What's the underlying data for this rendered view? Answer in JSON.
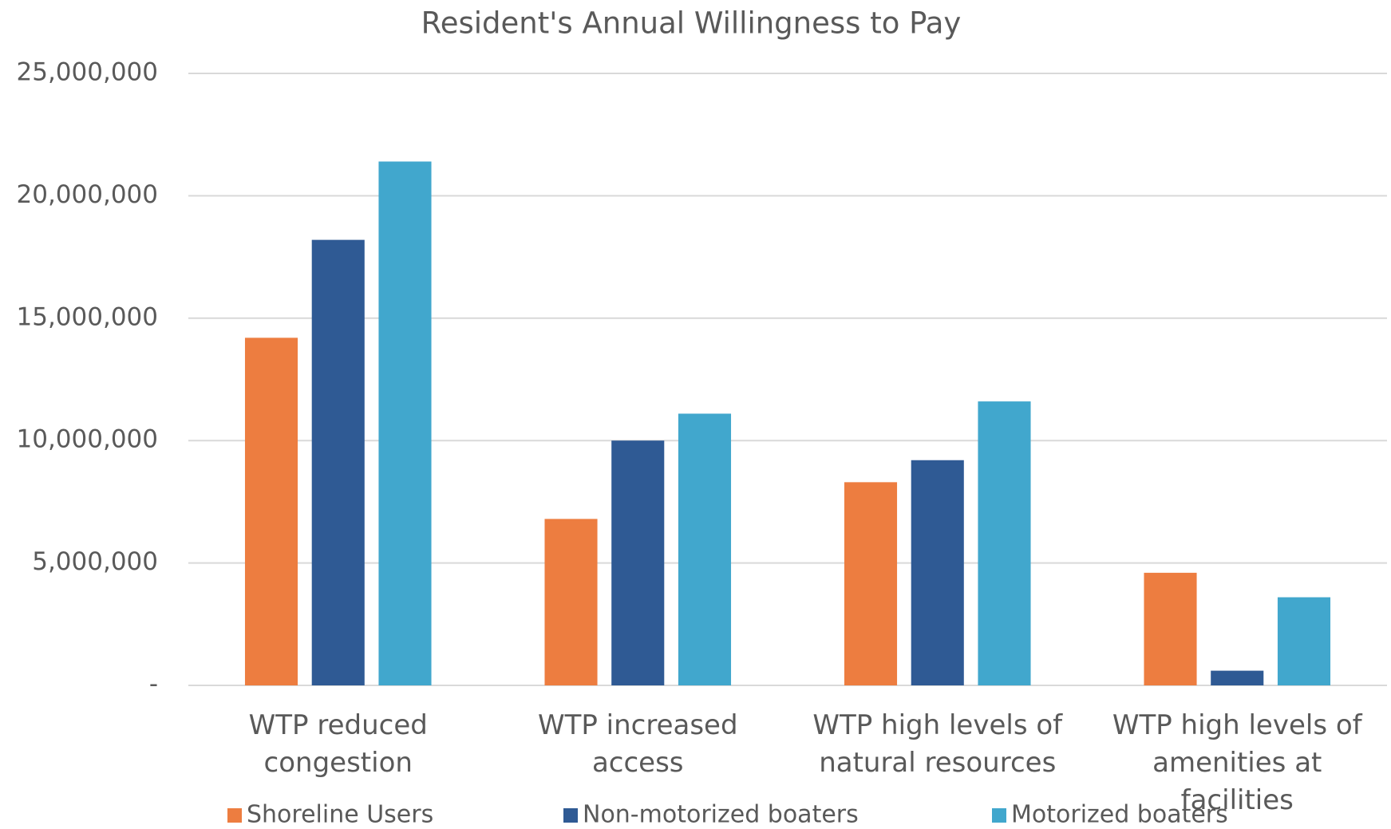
{
  "chart_data": {
    "type": "bar",
    "title": "Resident's Annual Willingness to Pay",
    "categories": [
      "WTP reduced congestion",
      "WTP increased access",
      "WTP high levels of natural resources",
      "WTP high levels of amenities at facilities"
    ],
    "series": [
      {
        "name": "Shoreline Users",
        "color": "#ed7d40",
        "values": [
          14200000,
          6800000,
          8300000,
          4600000
        ]
      },
      {
        "name": "Non-motorized boaters",
        "color": "#2f5a94",
        "values": [
          18200000,
          10000000,
          9200000,
          600000
        ]
      },
      {
        "name": "Motorized boaters",
        "color": "#41a7cd",
        "values": [
          21400000,
          11100000,
          11600000,
          3600000
        ]
      }
    ],
    "ylim": [
      0,
      25000000
    ],
    "yticks": [
      {
        "value": 0,
        "label": "-"
      },
      {
        "value": 5000000,
        "label": "5,000,000"
      },
      {
        "value": 10000000,
        "label": "10,000,000"
      },
      {
        "value": 15000000,
        "label": "15,000,000"
      },
      {
        "value": 20000000,
        "label": "20,000,000"
      },
      {
        "value": 25000000,
        "label": "25,000,000"
      }
    ],
    "grid": true,
    "legend": "bottom"
  }
}
